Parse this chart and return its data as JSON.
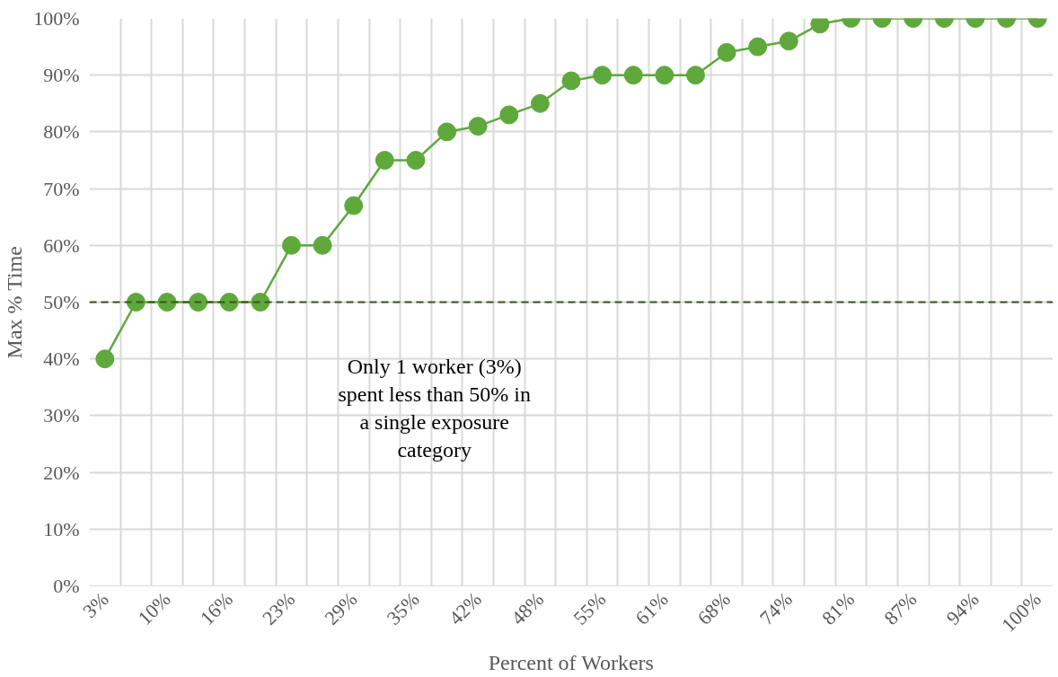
{
  "chart_data": {
    "type": "line",
    "xlabel": "Percent of Workers",
    "ylabel": "Max % Time",
    "categories": [
      "3%",
      null,
      "10%",
      null,
      "16%",
      null,
      "23%",
      null,
      "29%",
      null,
      "35%",
      null,
      "42%",
      null,
      "48%",
      null,
      "55%",
      null,
      "61%",
      null,
      "68%",
      null,
      "74%",
      null,
      "81%",
      null,
      "87%",
      null,
      "94%",
      null,
      "100%"
    ],
    "series": [
      {
        "color": "#5fa83c",
        "values": [
          40,
          50,
          50,
          50,
          50,
          50,
          60,
          60,
          67,
          75,
          75,
          80,
          81,
          83,
          85,
          89,
          90,
          90,
          90,
          90,
          94,
          95,
          96,
          99,
          100,
          100,
          100,
          100,
          100,
          100,
          100
        ]
      }
    ],
    "ylim": [
      0,
      100
    ],
    "yticks": [
      {
        "value": 0,
        "label": "0%"
      },
      {
        "value": 10,
        "label": "10%"
      },
      {
        "value": 20,
        "label": "20%"
      },
      {
        "value": 30,
        "label": "30%"
      },
      {
        "value": 40,
        "label": "40%"
      },
      {
        "value": 50,
        "label": "50%"
      },
      {
        "value": 60,
        "label": "60%"
      },
      {
        "value": 70,
        "label": "70%"
      },
      {
        "value": 80,
        "label": "80%"
      },
      {
        "value": 90,
        "label": "90%"
      },
      {
        "value": 100,
        "label": "100%"
      }
    ],
    "ref_lines": [
      {
        "axis": "y",
        "value": 50,
        "color": "#375623",
        "line_style": "dashed"
      }
    ],
    "annotations": [
      "Only 1 worker (3%)\nspent less than 50% in\na single exposure\ncategory"
    ],
    "grid": true,
    "marker": "circle",
    "line_style": "solid"
  }
}
